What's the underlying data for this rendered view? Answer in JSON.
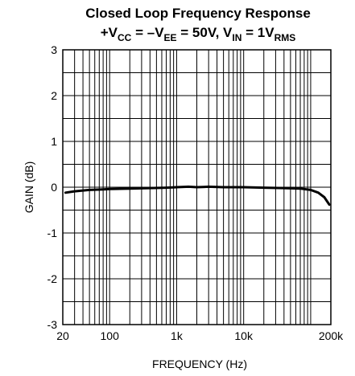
{
  "chart_data": {
    "type": "line",
    "title": {
      "line1": "Closed Loop Frequency Response",
      "line2_parts": [
        {
          "text": "+V",
          "sub": false
        },
        {
          "text": "CC",
          "sub": true
        },
        {
          "text": " = –V",
          "sub": false
        },
        {
          "text": "EE",
          "sub": true
        },
        {
          "text": " = 50V, V",
          "sub": false
        },
        {
          "text": "IN",
          "sub": true
        },
        {
          "text": " = 1V",
          "sub": false
        },
        {
          "text": "RMS",
          "sub": true
        }
      ]
    },
    "xlabel": "FREQUENCY (Hz)",
    "ylabel": "GAIN (dB)",
    "x_scale": "log",
    "xlim": [
      20,
      200000
    ],
    "ylim": [
      -3,
      3
    ],
    "grid": true,
    "x_tick_labels": [
      {
        "value": 20,
        "label": "20"
      },
      {
        "value": 100,
        "label": "100"
      },
      {
        "value": 1000,
        "label": "1k"
      },
      {
        "value": 10000,
        "label": "10k"
      },
      {
        "value": 200000,
        "label": "200k"
      }
    ],
    "y_tick_labels": [
      {
        "value": 3,
        "label": "3"
      },
      {
        "value": 2,
        "label": "2"
      },
      {
        "value": 1,
        "label": "1"
      },
      {
        "value": 0,
        "label": "0"
      },
      {
        "value": -1,
        "label": "-1"
      },
      {
        "value": -2,
        "label": "-2"
      },
      {
        "value": -3,
        "label": "-3"
      }
    ],
    "series": [
      {
        "color": "#000000",
        "points": [
          [
            22,
            -0.12
          ],
          [
            30,
            -0.09
          ],
          [
            50,
            -0.06
          ],
          [
            80,
            -0.05
          ],
          [
            100,
            -0.04
          ],
          [
            200,
            -0.03
          ],
          [
            400,
            -0.02
          ],
          [
            700,
            -0.01
          ],
          [
            1000,
            0.0
          ],
          [
            1500,
            0.01
          ],
          [
            2000,
            0.0
          ],
          [
            3000,
            0.01
          ],
          [
            5000,
            0.0
          ],
          [
            10000,
            0.0
          ],
          [
            20000,
            -0.01
          ],
          [
            40000,
            -0.02
          ],
          [
            70000,
            -0.03
          ],
          [
            100000,
            -0.06
          ],
          [
            130000,
            -0.12
          ],
          [
            160000,
            -0.22
          ],
          [
            190000,
            -0.38
          ]
        ]
      }
    ]
  }
}
